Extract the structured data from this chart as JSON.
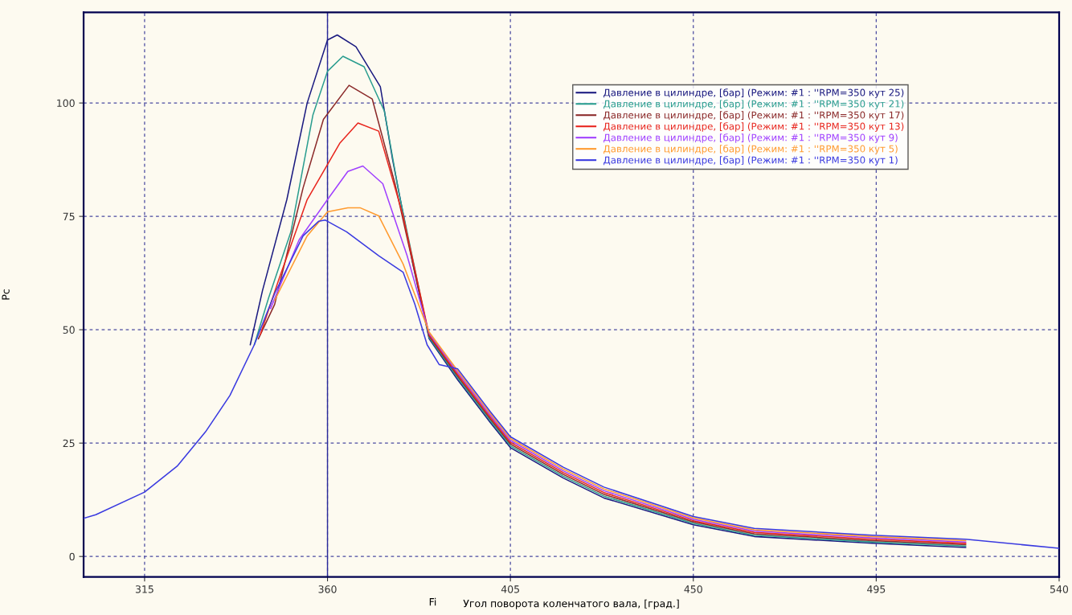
{
  "chart_data": {
    "type": "line",
    "xlabel": "Угол поворота коленчатого вала, [град.]",
    "ylabel": "Pc",
    "annotations": [
      "Fi"
    ],
    "xlim": [
      300,
      540
    ],
    "xticks": [
      315,
      360,
      405,
      450,
      495,
      540
    ],
    "ylim": [
      -4.5,
      120
    ],
    "yticks": [
      0,
      25,
      50,
      75,
      100
    ],
    "grid": true,
    "legend": "top right",
    "marker": "none",
    "line_style": "solid",
    "ref_lines": [
      {
        "axis": "x",
        "value": 360,
        "color": "#2a2a9a"
      }
    ],
    "series": [
      {
        "name": "Давление в цилиндре, [бар] (Режим: #1 : ''RPM=350 кут 25)",
        "color": "#1a1a80",
        "x": [
          341,
          344,
          350,
          355,
          360,
          362.4,
          367,
          373,
          376,
          381,
          385,
          392,
          400,
          405,
          418,
          428,
          450,
          465,
          494,
          517
        ],
        "values": [
          46.7,
          58.6,
          78.7,
          100,
          113.9,
          115,
          112.4,
          103.6,
          87.6,
          64.5,
          48,
          39,
          29.6,
          24,
          17.3,
          12.9,
          7.0,
          4.4,
          2.9,
          2.0
        ]
      },
      {
        "name": "Давление в цилиндре, [бар] (Режим: #1 : ''RPM=350 кут 21)",
        "color": "#2a9d8f",
        "x": [
          342,
          345.5,
          351,
          356.4,
          360,
          363.8,
          369,
          374,
          377.5,
          385,
          392,
          400,
          405,
          418,
          428,
          450,
          465,
          494,
          517
        ],
        "values": [
          46.7,
          57,
          71.6,
          97.3,
          107,
          110.3,
          108,
          98.2,
          80.5,
          48.3,
          39.4,
          30,
          24.4,
          17.7,
          13.3,
          7.3,
          4.7,
          3.2,
          2.3
        ]
      },
      {
        "name": "Давление в цилиндре, [бар] (Режим: #1 : ''RPM=350 кут 17)",
        "color": "#8b2a2a",
        "x": [
          343,
          347,
          354,
          359,
          365.3,
          371,
          376.6,
          385,
          392,
          400,
          405,
          418,
          428,
          450,
          465,
          494,
          517
        ],
        "values": [
          48,
          55.6,
          81.3,
          96.4,
          103.9,
          100.9,
          82.2,
          48.6,
          39.8,
          30.4,
          24.8,
          18.1,
          13.7,
          7.6,
          5.0,
          3.5,
          2.6
        ]
      },
      {
        "name": "Давление в цилиндре, [бар] (Режим: #1 : ''RPM=350 кут 13)",
        "color": "#e8261e",
        "x": [
          343.5,
          348,
          355,
          363,
          367.5,
          372.6,
          378.6,
          385,
          392,
          400,
          405,
          418,
          428,
          450,
          465,
          494,
          517
        ],
        "values": [
          49,
          61,
          78.7,
          91.1,
          95.6,
          93.8,
          75.1,
          48.9,
          40.2,
          30.8,
          25.2,
          18.5,
          14.1,
          7.9,
          5.3,
          3.8,
          2.9
        ]
      },
      {
        "name": "Давление в цилиндре, [бар] (Режим: #1 : ''RPM=350 кут 9)",
        "color": "#a040ff",
        "x": [
          346,
          353,
          360,
          365,
          368.7,
          373.6,
          379.6,
          385,
          392,
          400,
          405,
          418,
          428,
          450,
          465,
          494,
          517
        ],
        "values": [
          54.7,
          69.8,
          78.7,
          84.9,
          86.1,
          82.2,
          66.3,
          49.2,
          40.6,
          31.2,
          25.6,
          18.9,
          14.5,
          8.2,
          5.6,
          4.1,
          3.2
        ]
      },
      {
        "name": "Давление в цилиндре, [бар] (Режим: #1 : ''RPM=350 кут 5)",
        "color": "#ff9a2e",
        "x": [
          347,
          355,
          360,
          365,
          368,
          372.6,
          378.6,
          385,
          392,
          400,
          405,
          418,
          428,
          450,
          465,
          494,
          517
        ],
        "values": [
          56.5,
          70.7,
          76,
          76.9,
          76.9,
          75.1,
          64.5,
          49.5,
          41,
          31.6,
          26,
          19.3,
          14.9,
          8.5,
          5.9,
          4.4,
          3.5
        ]
      },
      {
        "name": "Давление в цилиндре, [бар] (Режим: #1 : ''RPM=350 кут 1)",
        "color": "#3a3ae0",
        "x": [
          300,
          303,
          315,
          323,
          330,
          336,
          342,
          347,
          354,
          357.8,
          359.4,
          364.7,
          372.6,
          378.6,
          381.5,
          384.5,
          387.5,
          392,
          400,
          405,
          418,
          428,
          450,
          465,
          494,
          517,
          540
        ],
        "values": [
          8.4,
          9.2,
          14.2,
          19.9,
          27.5,
          35.5,
          46.7,
          58,
          70.7,
          73.9,
          74.2,
          71.6,
          66.3,
          62.7,
          55.6,
          46.7,
          42.3,
          41.4,
          32,
          26.4,
          19.7,
          15.3,
          8.8,
          6.2,
          4.7,
          3.8,
          1.8
        ]
      }
    ]
  }
}
